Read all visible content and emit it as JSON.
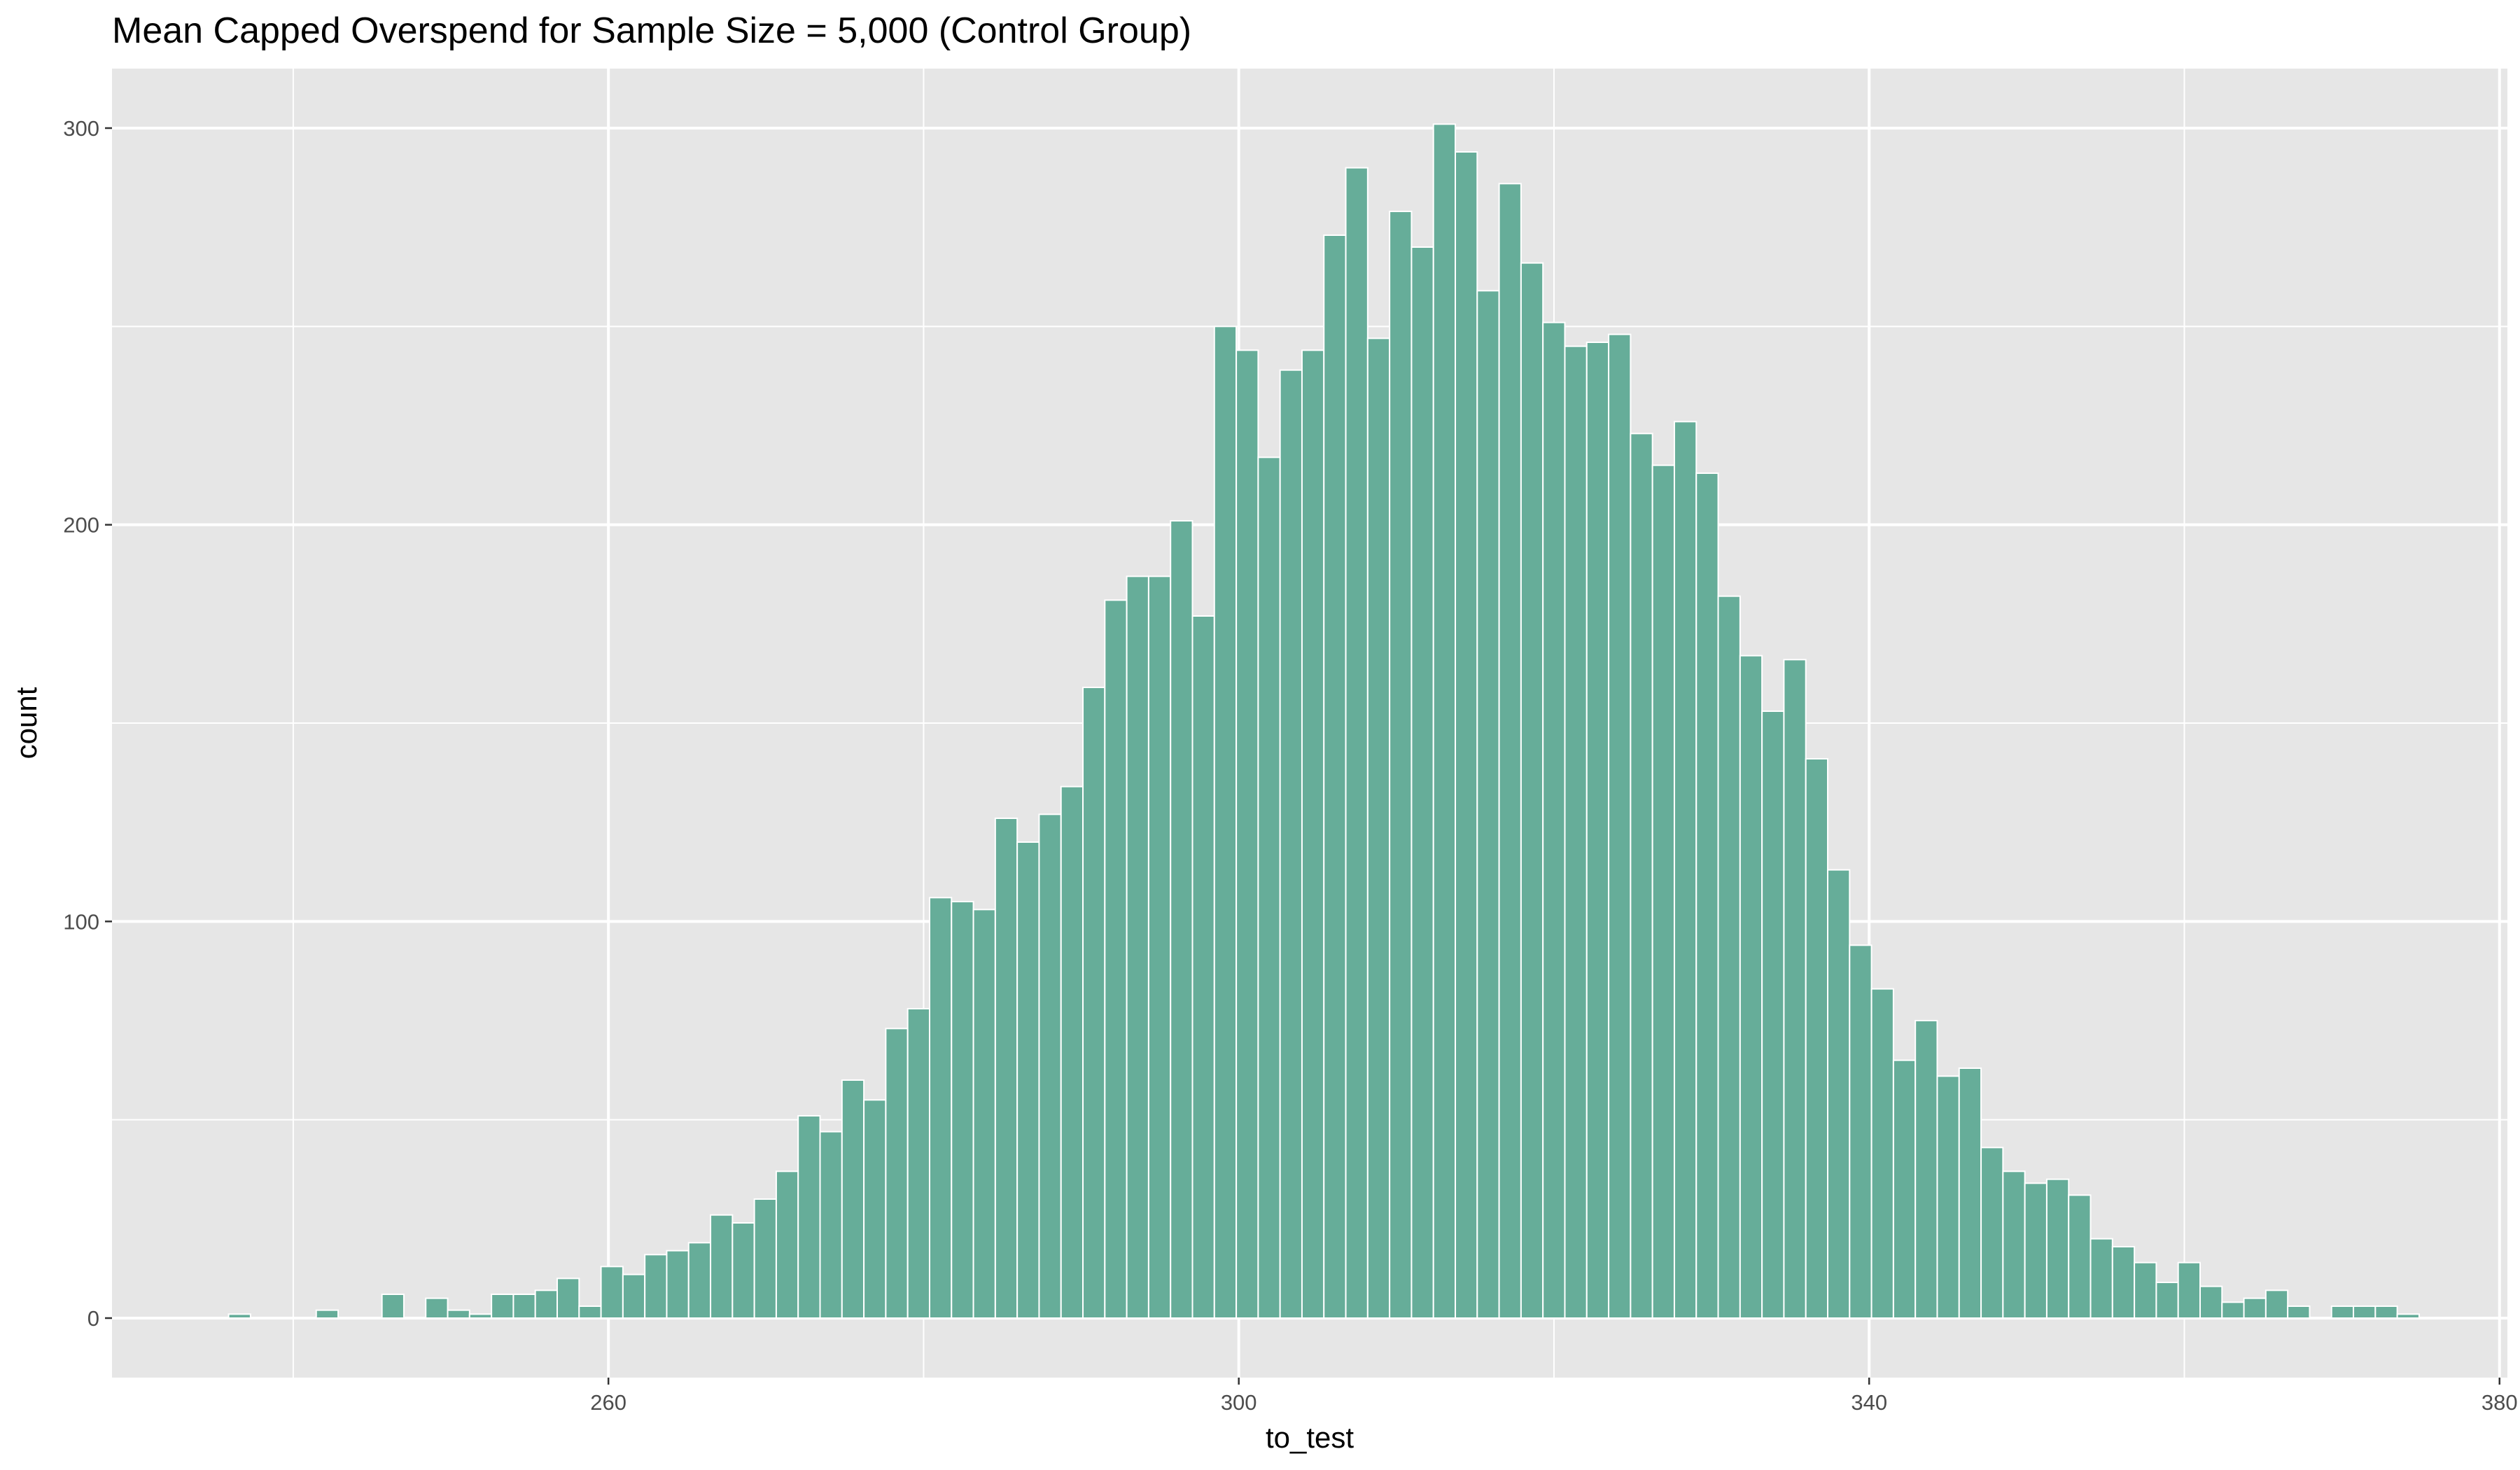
{
  "chart_data": {
    "type": "bar",
    "title": "Mean Capped Overspend for Sample Size = 5,000 (Control Group)",
    "xlabel": "to_test",
    "ylabel": "count",
    "xlim": [
      228.5,
      380.5
    ],
    "ylim": [
      -15,
      315
    ],
    "x_ticks": [
      260,
      300,
      340,
      380
    ],
    "x_minor_ticks": [
      240,
      280,
      320,
      360
    ],
    "y_ticks": [
      0,
      100,
      200,
      300
    ],
    "y_minor_ticks": [
      50,
      150,
      250
    ],
    "grid": true,
    "legend": "none",
    "bar_color": "#66AD99",
    "panel_color": "#E6E6E6",
    "bin_start": 235.9,
    "bin_width": 1.39,
    "counts": [
      1,
      0,
      0,
      0,
      2,
      0,
      0,
      6,
      0,
      5,
      2,
      1,
      6,
      6,
      7,
      10,
      3,
      13,
      11,
      16,
      17,
      19,
      26,
      24,
      30,
      37,
      51,
      47,
      60,
      55,
      73,
      78,
      106,
      105,
      103,
      126,
      120,
      127,
      134,
      159,
      181,
      187,
      187,
      201,
      177,
      250,
      244,
      217,
      239,
      244,
      273,
      290,
      247,
      279,
      270,
      301,
      294,
      259,
      286,
      266,
      251,
      245,
      246,
      248,
      223,
      215,
      226,
      213,
      182,
      167,
      153,
      166,
      141,
      113,
      94,
      83,
      65,
      75,
      61,
      63,
      43,
      37,
      34,
      35,
      31,
      20,
      18,
      14,
      9,
      14,
      8,
      4,
      5,
      7,
      3,
      0,
      3,
      3,
      3,
      1
    ]
  }
}
